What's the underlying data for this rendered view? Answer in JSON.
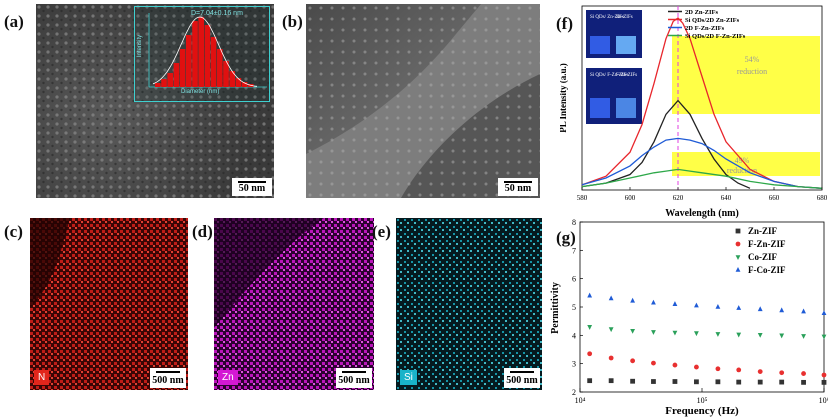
{
  "panels": {
    "a": {
      "label": "(a)",
      "scale": "50 nm",
      "inset": {
        "title": "D=7.04±0.16 nm",
        "xlabel": "Diameter (nm)",
        "ylabel": "Intensity"
      }
    },
    "b": {
      "label": "(b)",
      "scale": "50 nm"
    },
    "c": {
      "label": "(c)",
      "scale": "500 nm",
      "element": "N",
      "color": "#e1261c"
    },
    "d": {
      "label": "(d)",
      "scale": "500 nm",
      "element": "Zn",
      "color": "#d418d4"
    },
    "e": {
      "label": "(e)",
      "scale": "500 nm",
      "element": "Si",
      "color": "#19b3c9"
    },
    "f": {
      "label": "(f)",
      "photo_labels_top": [
        "Si QDs/ Zn-ZIFs",
        "Zn-ZIFs"
      ],
      "photo_labels_bottom": [
        "Si QDs/ F-Zn-ZIFs",
        "F-Zn-ZIFs"
      ],
      "annot_top": [
        "54%",
        "reduction"
      ],
      "annot_bottom": [
        "49%",
        "reduction"
      ]
    },
    "g": {
      "label": "(g)"
    }
  },
  "chart_data": [
    {
      "type": "line",
      "panel": "f",
      "xlabel": "Wavelength (nm)",
      "ylabel": "PL Intensity (a.u.)",
      "xlim": [
        580,
        680
      ],
      "xticks": [
        580,
        600,
        620,
        640,
        660,
        680
      ],
      "peak_marker": 620,
      "series": [
        {
          "name": "2D Zn-ZIFs",
          "color": "#222222",
          "x": [
            580,
            590,
            600,
            605,
            610,
            615,
            620,
            625,
            630,
            635,
            640,
            645,
            650
          ],
          "y": [
            0.02,
            0.04,
            0.09,
            0.16,
            0.28,
            0.44,
            0.52,
            0.44,
            0.3,
            0.18,
            0.09,
            0.04,
            0.01
          ]
        },
        {
          "name": "Si QDs/2D Zn-ZIFs",
          "color": "#e8262c",
          "x": [
            580,
            590,
            600,
            605,
            610,
            615,
            618,
            620,
            622,
            625,
            630,
            635,
            640,
            650,
            660,
            670,
            680
          ],
          "y": [
            0.03,
            0.08,
            0.22,
            0.38,
            0.62,
            0.88,
            0.98,
            1.0,
            0.97,
            0.88,
            0.66,
            0.44,
            0.28,
            0.12,
            0.05,
            0.02,
            0.01
          ]
        },
        {
          "name": "2D F-Zn-ZIFs",
          "color": "#1f5bd6",
          "x": [
            580,
            590,
            600,
            605,
            610,
            615,
            620,
            625,
            630,
            635,
            640,
            650,
            660,
            670,
            680
          ],
          "y": [
            0.03,
            0.07,
            0.14,
            0.2,
            0.25,
            0.29,
            0.3,
            0.29,
            0.27,
            0.23,
            0.18,
            0.1,
            0.05,
            0.02,
            0.01
          ]
        },
        {
          "name": "Si QDs/2D F-Zn-ZIFs",
          "color": "#2ea84a",
          "x": [
            580,
            590,
            600,
            610,
            615,
            620,
            625,
            630,
            640,
            650,
            660,
            670,
            680
          ],
          "y": [
            0.02,
            0.04,
            0.07,
            0.1,
            0.11,
            0.12,
            0.11,
            0.1,
            0.08,
            0.05,
            0.03,
            0.02,
            0.01
          ]
        }
      ]
    },
    {
      "type": "scatter",
      "panel": "g",
      "xlabel": "Frequency (Hz)",
      "ylabel": "Permittivity",
      "xscale": "log",
      "xlim": [
        10000,
        1000000
      ],
      "ylim": [
        2,
        8
      ],
      "yticks": [
        2,
        3,
        4,
        5,
        6,
        7,
        8
      ],
      "xtick_labels": [
        "10⁴",
        "10⁵",
        "10⁶"
      ],
      "series": [
        {
          "name": "Zn-ZIF",
          "marker": "square",
          "color": "#333333",
          "x": [
            12000,
            18000,
            27000,
            40000,
            60000,
            90000,
            135000,
            200000,
            300000,
            450000,
            680000,
            1000000
          ],
          "y": [
            2.4,
            2.4,
            2.38,
            2.37,
            2.37,
            2.36,
            2.36,
            2.35,
            2.35,
            2.35,
            2.34,
            2.34
          ]
        },
        {
          "name": "F-Zn-ZIF",
          "marker": "circle",
          "color": "#e83030",
          "x": [
            12000,
            18000,
            27000,
            40000,
            60000,
            90000,
            135000,
            200000,
            300000,
            450000,
            680000,
            1000000
          ],
          "y": [
            3.35,
            3.2,
            3.1,
            3.02,
            2.95,
            2.88,
            2.82,
            2.78,
            2.72,
            2.68,
            2.65,
            2.6
          ]
        },
        {
          "name": "Co-ZIF",
          "marker": "triangle-down",
          "color": "#2aa05a",
          "x": [
            12000,
            18000,
            27000,
            40000,
            60000,
            90000,
            135000,
            200000,
            300000,
            450000,
            680000,
            1000000
          ],
          "y": [
            4.3,
            4.22,
            4.16,
            4.12,
            4.1,
            4.08,
            4.05,
            4.03,
            4.02,
            4.0,
            3.98,
            3.96
          ]
        },
        {
          "name": "F-Co-ZIF",
          "marker": "triangle-up",
          "color": "#1f5bd6",
          "x": [
            12000,
            18000,
            27000,
            40000,
            60000,
            90000,
            135000,
            200000,
            300000,
            450000,
            680000,
            1000000
          ],
          "y": [
            5.4,
            5.3,
            5.22,
            5.15,
            5.1,
            5.05,
            5.0,
            4.96,
            4.92,
            4.88,
            4.84,
            4.78
          ]
        }
      ]
    }
  ]
}
